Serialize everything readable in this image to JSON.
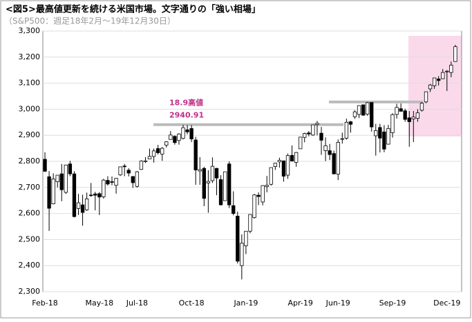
{
  "chart_data": {
    "type": "candlestick",
    "title": "<図5>最高値更新を続ける米国市場。文字通りの「強い相場」",
    "subtitle": "（S&P500：週足18年2月～19年12月30日）",
    "categories": [
      "Feb-18",
      null,
      null,
      null,
      null,
      null,
      null,
      null,
      null,
      null,
      null,
      null,
      null,
      "May-18",
      null,
      null,
      null,
      null,
      null,
      null,
      null,
      null,
      "Jul-18",
      null,
      null,
      null,
      null,
      null,
      null,
      null,
      null,
      null,
      null,
      null,
      null,
      "Oct-18",
      null,
      null,
      null,
      null,
      null,
      null,
      null,
      null,
      null,
      null,
      null,
      null,
      "Jan-19",
      null,
      null,
      null,
      null,
      null,
      null,
      null,
      null,
      null,
      null,
      null,
      null,
      "Apr-19",
      null,
      null,
      null,
      null,
      null,
      null,
      null,
      null,
      "Jun-19",
      null,
      null,
      null,
      null,
      null,
      null,
      null,
      null,
      null,
      null,
      null,
      null,
      "Sep-19",
      null,
      null,
      null,
      null,
      null,
      null,
      null,
      null,
      null,
      null,
      null,
      null,
      "Dec-19",
      null,
      null
    ],
    "open": [
      2808,
      2741,
      2637,
      2722,
      2752,
      2681,
      2790,
      2752,
      2619,
      2633,
      2614,
      2671,
      2675,
      2676,
      2664,
      2727,
      2722,
      2708,
      2748,
      2782,
      2766,
      2742,
      2704,
      2769,
      2799,
      2809,
      2819,
      2849,
      2828,
      2862,
      2884,
      2896,
      2880,
      2888,
      2921,
      2926,
      2882,
      2763,
      2773,
      2717,
      2726,
      2773,
      2730,
      2649,
      2790,
      2630,
      2590,
      2400,
      2476,
      2532,
      2584,
      2670,
      2644,
      2703,
      2712,
      2780,
      2798,
      2802,
      2747,
      2823,
      2796,
      2848,
      2892,
      2909,
      2901,
      2941,
      2908,
      2841,
      2841,
      2830,
      2751,
      2885,
      2889,
      2952,
      2971,
      2980,
      3017,
      2981,
      3026,
      2898,
      2930,
      2913,
      2866,
      2910,
      2980,
      3002,
      2994,
      2967,
      2963,
      2965,
      2996,
      3028,
      3078,
      3090,
      3116,
      3117,
      3144,
      3141,
      3183
    ],
    "high": [
      2835,
      2763,
      2754,
      2747,
      2790,
      2787,
      2802,
      2762,
      2675,
      2672,
      2680,
      2717,
      2683,
      2682,
      2733,
      2743,
      2742,
      2736,
      2779,
      2790,
      2774,
      2743,
      2763,
      2804,
      2816,
      2849,
      2849,
      2863,
      2855,
      2877,
      2916,
      2900,
      2908,
      2940,
      2939,
      2939,
      2894,
      2816,
      2779,
      2766,
      2815,
      2775,
      2747,
      2760,
      2800,
      2685,
      2607,
      2520,
      2532,
      2597,
      2675,
      2681,
      2708,
      2744,
      2775,
      2794,
      2814,
      2803,
      2830,
      2861,
      2836,
      2893,
      2910,
      2916,
      2940,
      2955,
      2932,
      2892,
      2867,
      2841,
      2884,
      2910,
      2964,
      2955,
      2996,
      3014,
      3018,
      3028,
      3027,
      2944,
      2944,
      2939,
      2940,
      2985,
      3021,
      3022,
      3002,
      2993,
      2993,
      3000,
      3027,
      3067,
      3097,
      3121,
      3127,
      3154,
      3150,
      3183,
      3247
    ],
    "low": [
      2759,
      2533,
      2635,
      2700,
      2647,
      2675,
      2743,
      2585,
      2594,
      2553,
      2610,
      2664,
      2612,
      2594,
      2657,
      2707,
      2708,
      2676,
      2744,
      2743,
      2742,
      2698,
      2699,
      2767,
      2794,
      2808,
      2795,
      2826,
      2802,
      2853,
      2883,
      2864,
      2864,
      2884,
      2904,
      2874,
      2710,
      2710,
      2628,
      2603,
      2717,
      2670,
      2631,
      2649,
      2621,
      2593,
      2408,
      2347,
      2444,
      2524,
      2580,
      2632,
      2631,
      2681,
      2707,
      2767,
      2776,
      2722,
      2733,
      2800,
      2779,
      2848,
      2873,
      2896,
      2898,
      2900,
      2825,
      2801,
      2805,
      2750,
      2728,
      2868,
      2883,
      2910,
      2963,
      2966,
      2975,
      2975,
      2914,
      2822,
      2834,
      2835,
      2864,
      2891,
      2964,
      2993,
      2952,
      2856,
      2874,
      2952,
      2991,
      3023,
      3066,
      3078,
      3091,
      3116,
      3070,
      3123,
      3182
    ],
    "close": [
      2762,
      2620,
      2732,
      2747,
      2691,
      2786,
      2752,
      2588,
      2641,
      2604,
      2656,
      2670,
      2670,
      2663,
      2728,
      2713,
      2721,
      2735,
      2779,
      2780,
      2755,
      2718,
      2760,
      2801,
      2802,
      2819,
      2840,
      2833,
      2850,
      2875,
      2901,
      2872,
      2905,
      2929,
      2913,
      2886,
      2767,
      2768,
      2658,
      2723,
      2781,
      2736,
      2633,
      2760,
      2633,
      2600,
      2417,
      2486,
      2532,
      2596,
      2671,
      2665,
      2707,
      2708,
      2776,
      2793,
      2804,
      2743,
      2822,
      2801,
      2834,
      2893,
      2907,
      2905,
      2940,
      2946,
      2881,
      2860,
      2826,
      2752,
      2873,
      2887,
      2950,
      2942,
      2990,
      3014,
      2977,
      3025,
      2932,
      2918,
      2889,
      2847,
      2926,
      2979,
      3007,
      2992,
      2961,
      2952,
      2970,
      2986,
      3023,
      3067,
      3093,
      3120,
      3110,
      3141,
      3146,
      3169,
      3240
    ],
    "up_color": "#ffffff",
    "down_color": "#000000",
    "ylim": [
      2300,
      3300
    ],
    "yticks": [
      {
        "value": 2300,
        "label": "2,300"
      },
      {
        "value": 2400,
        "label": "2,400"
      },
      {
        "value": 2500,
        "label": "2,500"
      },
      {
        "value": 2600,
        "label": "2,600"
      },
      {
        "value": 2700,
        "label": "2,700"
      },
      {
        "value": 2800,
        "label": "2,800"
      },
      {
        "value": 2900,
        "label": "2,900"
      },
      {
        "value": 3000,
        "label": "3,000"
      },
      {
        "value": 3100,
        "label": "3,100"
      },
      {
        "value": 3200,
        "label": "3,200"
      },
      {
        "value": 3300,
        "label": "3,300"
      }
    ],
    "grid": true,
    "annotation": "18.9高値",
    "reference_lines": [
      2940.91,
      3028
    ]
  }
}
